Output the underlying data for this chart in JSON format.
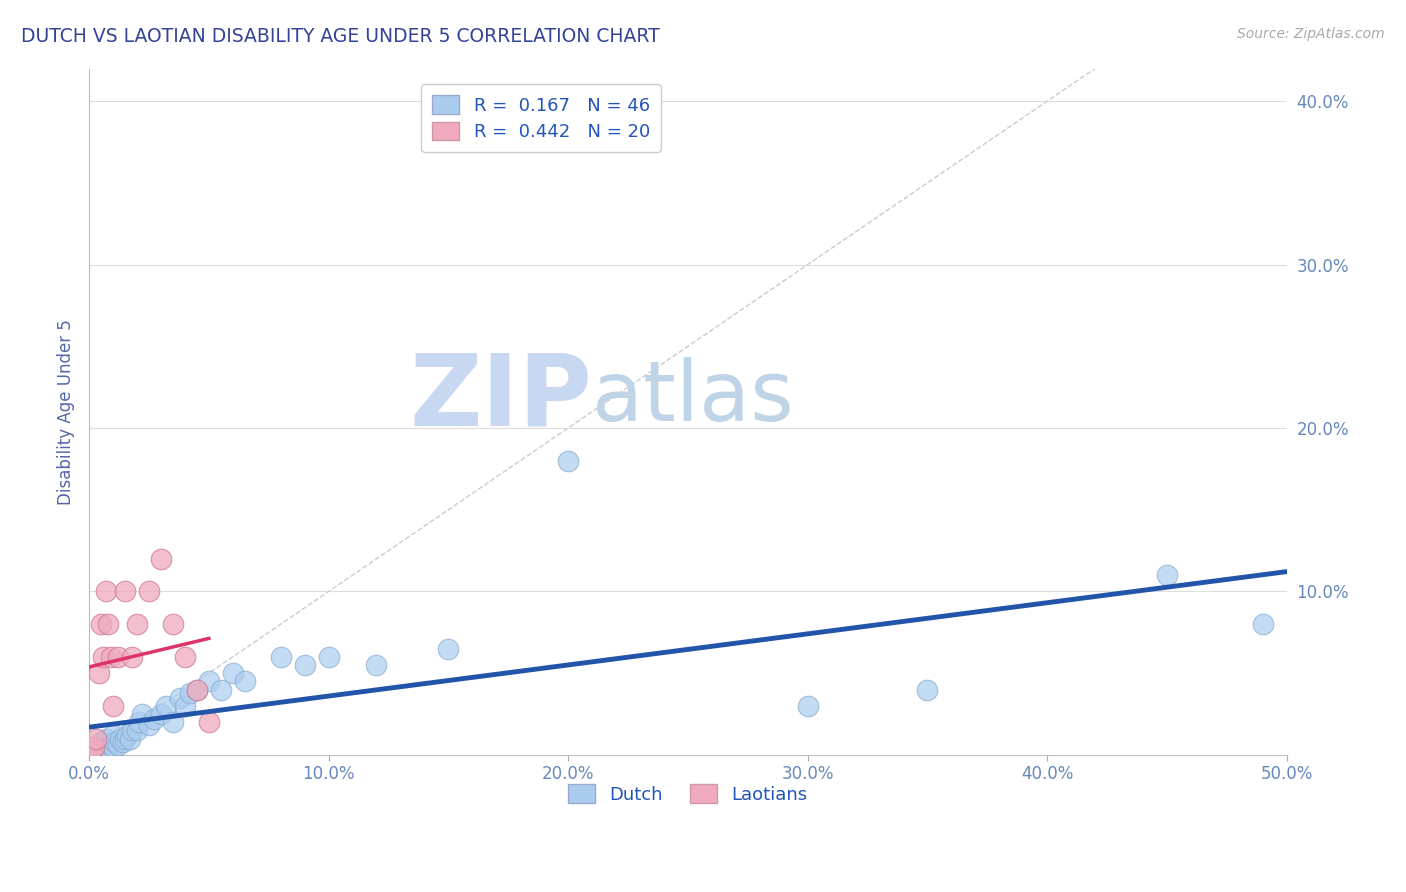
{
  "title": "DUTCH VS LAOTIAN DISABILITY AGE UNDER 5 CORRELATION CHART",
  "source": "Source: ZipAtlas.com",
  "ylabel": "Disability Age Under 5",
  "xlim": [
    0.0,
    0.5
  ],
  "ylim": [
    0.0,
    0.42
  ],
  "xticks": [
    0.0,
    0.1,
    0.2,
    0.3,
    0.4,
    0.5
  ],
  "yticks": [
    0.1,
    0.2,
    0.3,
    0.4
  ],
  "ytick_labels": [
    "10.0%",
    "20.0%",
    "30.0%",
    "40.0%"
  ],
  "xtick_labels": [
    "0.0%",
    "10.0%",
    "20.0%",
    "30.0%",
    "40.0%",
    "50.0%"
  ],
  "dutch_R": 0.167,
  "dutch_N": 46,
  "laotian_R": 0.442,
  "laotian_N": 20,
  "dutch_color": "#aaccee",
  "dutch_line_color": "#2255aa",
  "laotian_color": "#f0aabb",
  "laotian_line_color": "#dd3366",
  "background_color": "#ffffff",
  "grid_color": "#dddddd",
  "diagonal_color": "#cccccc",
  "watermark_zip": "ZIP",
  "watermark_atlas": "atlas",
  "watermark_color_zip": "#c8d8f0",
  "watermark_color_atlas": "#c0d4e8",
  "title_color": "#334499",
  "axis_label_color": "#5566aa",
  "tick_color": "#6688bb",
  "legend_text_color": "#2255bb",
  "dutch_x": [
    0.002,
    0.003,
    0.004,
    0.005,
    0.005,
    0.006,
    0.007,
    0.007,
    0.008,
    0.009,
    0.01,
    0.01,
    0.011,
    0.012,
    0.013,
    0.014,
    0.015,
    0.016,
    0.017,
    0.018,
    0.02,
    0.021,
    0.022,
    0.025,
    0.027,
    0.03,
    0.032,
    0.035,
    0.038,
    0.04,
    0.042,
    0.045,
    0.05,
    0.055,
    0.06,
    0.065,
    0.08,
    0.09,
    0.1,
    0.12,
    0.15,
    0.2,
    0.3,
    0.35,
    0.45,
    0.49
  ],
  "dutch_y": [
    0.002,
    0.003,
    0.002,
    0.004,
    0.008,
    0.003,
    0.005,
    0.01,
    0.004,
    0.006,
    0.005,
    0.012,
    0.008,
    0.006,
    0.01,
    0.008,
    0.01,
    0.012,
    0.01,
    0.015,
    0.015,
    0.02,
    0.025,
    0.018,
    0.022,
    0.025,
    0.03,
    0.02,
    0.035,
    0.03,
    0.038,
    0.04,
    0.045,
    0.04,
    0.05,
    0.045,
    0.06,
    0.055,
    0.06,
    0.055,
    0.065,
    0.18,
    0.03,
    0.04,
    0.11,
    0.08
  ],
  "laotian_x": [
    0.001,
    0.002,
    0.003,
    0.004,
    0.005,
    0.006,
    0.007,
    0.008,
    0.009,
    0.01,
    0.012,
    0.015,
    0.018,
    0.02,
    0.025,
    0.03,
    0.035,
    0.04,
    0.045,
    0.05
  ],
  "laotian_y": [
    0.002,
    0.005,
    0.01,
    0.05,
    0.08,
    0.06,
    0.1,
    0.08,
    0.06,
    0.03,
    0.06,
    0.1,
    0.06,
    0.08,
    0.1,
    0.12,
    0.08,
    0.06,
    0.04,
    0.02
  ]
}
